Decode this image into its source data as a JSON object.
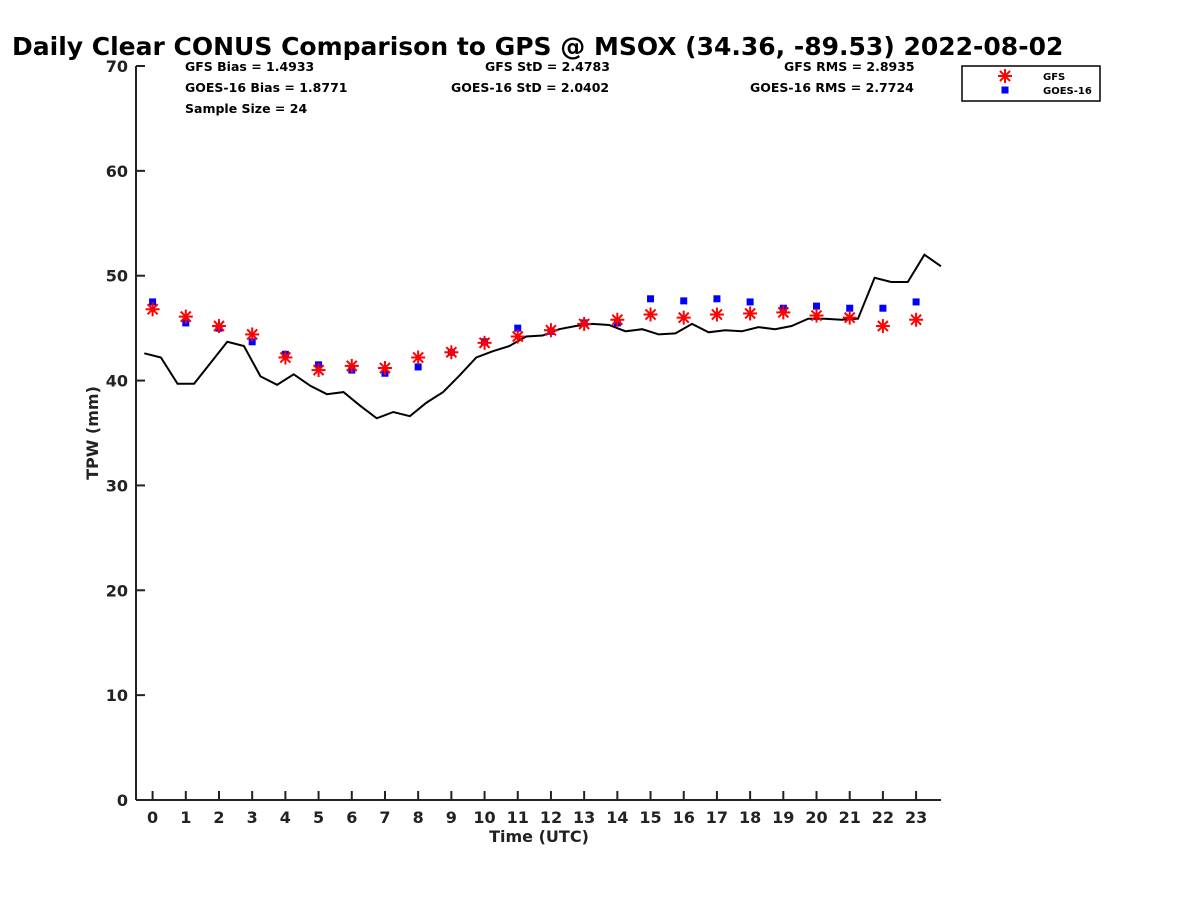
{
  "chart_data": {
    "type": "scatter",
    "title": "Daily Clear CONUS Comparison to GPS @ MSOX (34.36, -89.53) 2022-08-02",
    "xlabel": "Time (UTC)",
    "ylabel": "TPW (mm)",
    "xlim": [
      -0.5,
      23.75
    ],
    "ylim": [
      0,
      70
    ],
    "x_ticks": [
      0,
      1,
      2,
      3,
      4,
      5,
      6,
      7,
      8,
      9,
      10,
      11,
      12,
      13,
      14,
      15,
      16,
      17,
      18,
      19,
      20,
      21,
      22,
      23
    ],
    "y_ticks": [
      0,
      10,
      20,
      30,
      40,
      50,
      60,
      70
    ],
    "legend_position": "top-right",
    "stats": {
      "gfs_bias": "GFS Bias = 1.4933",
      "gfs_std": "GFS StD = 2.4783",
      "gfs_rms": "GFS RMS = 2.8935",
      "goes_bias": "GOES-16 Bias = 1.8771",
      "goes_std": "GOES-16 StD = 2.0402",
      "goes_rms": "GOES-16 RMS = 2.7724",
      "sample_size": "Sample Size = 24"
    },
    "series": [
      {
        "name": "GFS",
        "marker": "asterisk",
        "color": "#ff0000",
        "x": [
          0,
          1,
          2,
          3,
          4,
          5,
          6,
          7,
          8,
          9,
          10,
          11,
          12,
          13,
          14,
          15,
          16,
          17,
          18,
          19,
          20,
          21,
          22,
          23
        ],
        "values": [
          46.8,
          46.1,
          45.2,
          44.4,
          42.2,
          41.0,
          41.4,
          41.2,
          42.2,
          42.7,
          43.6,
          44.2,
          44.8,
          45.4,
          45.8,
          46.3,
          46.0,
          46.3,
          46.4,
          46.5,
          46.2,
          46.0,
          45.2,
          45.8
        ]
      },
      {
        "name": "GOES-16",
        "marker": "square",
        "color": "#0000ff",
        "x": [
          0,
          1,
          2,
          3,
          4,
          5,
          6,
          7,
          8,
          9,
          10,
          11,
          12,
          13,
          14,
          15,
          16,
          17,
          18,
          19,
          20,
          21,
          22,
          23
        ],
        "values": [
          47.5,
          45.5,
          45.0,
          43.7,
          42.5,
          41.5,
          41.0,
          40.7,
          41.3,
          42.7,
          43.7,
          45.0,
          44.7,
          45.5,
          45.5,
          47.8,
          47.6,
          47.8,
          47.5,
          46.9,
          47.1,
          46.9,
          46.9,
          47.5
        ]
      },
      {
        "name": "GPS",
        "line": true,
        "color": "#000000",
        "x": [
          -0.25,
          0.25,
          0.75,
          1.25,
          1.75,
          2.25,
          2.75,
          3.25,
          3.75,
          4.25,
          4.75,
          5.25,
          5.75,
          6.25,
          6.75,
          7.25,
          7.75,
          8.25,
          8.75,
          9.25,
          9.75,
          10.25,
          10.75,
          11.25,
          11.75,
          12.25,
          12.75,
          13.25,
          13.75,
          14.25,
          14.75,
          15.25,
          15.75,
          16.25,
          16.75,
          17.25,
          17.75,
          18.25,
          18.75,
          19.25,
          19.75,
          20.25,
          20.75,
          21.25,
          21.75,
          22.25,
          22.75,
          23.25,
          23.75
        ],
        "values": [
          42.6,
          42.2,
          39.7,
          39.7,
          41.7,
          43.7,
          43.3,
          40.4,
          39.6,
          40.6,
          39.5,
          38.7,
          38.9,
          37.6,
          36.4,
          37.0,
          36.6,
          37.9,
          38.9,
          40.5,
          42.2,
          42.8,
          43.3,
          44.2,
          44.3,
          44.9,
          45.2,
          45.4,
          45.3,
          44.7,
          44.9,
          44.4,
          44.5,
          45.4,
          44.6,
          44.8,
          44.7,
          45.1,
          44.9,
          45.2,
          45.9,
          45.9,
          45.8,
          45.9,
          49.8,
          49.4,
          49.4,
          52.0,
          50.9
        ]
      }
    ]
  }
}
